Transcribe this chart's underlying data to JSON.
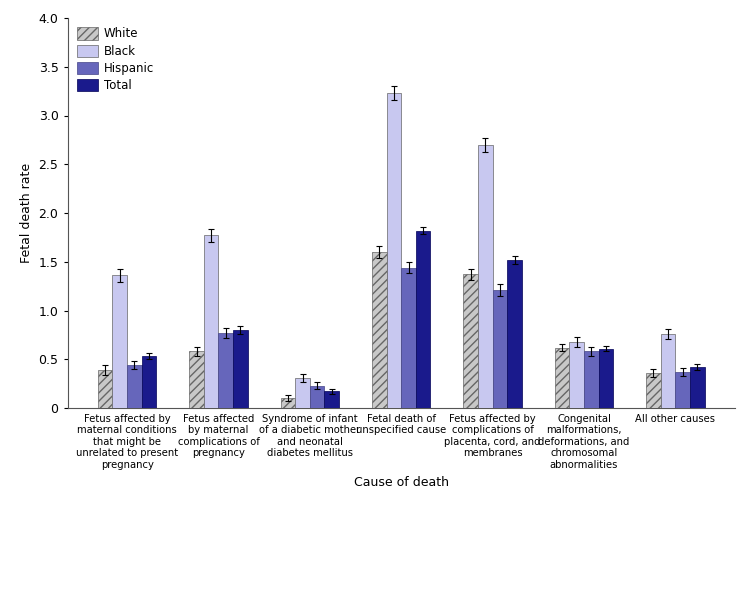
{
  "categories": [
    "Fetus affected by\nmaternal conditions\nthat might be\nunrelated to present\npregnancy",
    "Fetus affected\nby maternal\ncomplications of\npregnancy",
    "Syndrome of infant\nof a diabetic mother\nand neonatal\ndiabetes mellitus",
    "Fetal death of\nunspecified cause",
    "Fetus affected by\ncomplications of\nplacenta, cord, and\nmembranes",
    "Congenital\nmalformations,\ndeformations, and\nchromosomal\nabnormalities",
    "All other causes"
  ],
  "series": {
    "White": [
      0.39,
      0.58,
      0.1,
      1.6,
      1.37,
      0.62,
      0.36
    ],
    "Black": [
      1.36,
      1.77,
      0.31,
      3.23,
      2.7,
      0.68,
      0.76
    ],
    "Hispanic": [
      0.44,
      0.77,
      0.23,
      1.44,
      1.21,
      0.58,
      0.37
    ],
    "Total": [
      0.53,
      0.8,
      0.17,
      1.82,
      1.52,
      0.61,
      0.42
    ]
  },
  "errors": {
    "White": [
      0.05,
      0.05,
      0.03,
      0.06,
      0.06,
      0.04,
      0.04
    ],
    "Black": [
      0.07,
      0.07,
      0.04,
      0.07,
      0.07,
      0.05,
      0.05
    ],
    "Hispanic": [
      0.04,
      0.05,
      0.04,
      0.06,
      0.06,
      0.05,
      0.04
    ],
    "Total": [
      0.03,
      0.04,
      0.03,
      0.04,
      0.04,
      0.03,
      0.03
    ]
  },
  "colors": {
    "White": "#c8c8c8",
    "Black": "#c8c8f0",
    "Hispanic": "#6666bb",
    "Total": "#1a1a8c"
  },
  "hatch": {
    "White": "////",
    "Black": "",
    "Hispanic": "",
    "Total": ""
  },
  "ylabel": "Fetal death rate",
  "xlabel": "Cause of death",
  "ylim": [
    0,
    4.0
  ],
  "yticks": [
    0,
    0.5,
    1.0,
    1.5,
    2.0,
    2.5,
    3.0,
    3.5,
    4.0
  ],
  "legend_labels": [
    "White",
    "Black",
    "Hispanic",
    "Total"
  ],
  "bar_width": 0.16
}
